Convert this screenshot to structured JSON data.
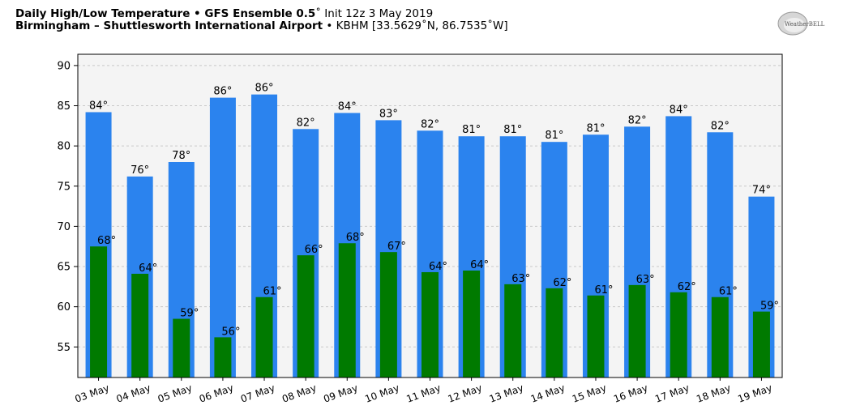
{
  "header": {
    "title_bold": "Daily High/Low Temperature • GFS Ensemble 0.5",
    "title_suffix": "˚ Init 12z 3 May 2019",
    "subtitle_bold": "Birmingham – Shuttlesworth International Airport",
    "subtitle_suffix": " • KBHM [33.5629˚N, 86.7535˚W]",
    "logo_text": "WeatherBELL"
  },
  "colors": {
    "high": "#2b83ee",
    "low": "#007a00",
    "plot_bg": "#f4f4f4"
  },
  "chart_data": {
    "type": "bar",
    "title": "Daily High/Low Temperature • GFS Ensemble 0.5˚ Init 12z 3 May 2019",
    "categories": [
      "03 May",
      "04 May",
      "05 May",
      "06 May",
      "07 May",
      "08 May",
      "09 May",
      "10 May",
      "11 May",
      "12 May",
      "13 May",
      "14 May",
      "15 May",
      "16 May",
      "17 May",
      "18 May",
      "19 May"
    ],
    "series": [
      {
        "name": "High",
        "values": [
          84.2,
          76.2,
          78.0,
          86.0,
          86.4,
          82.1,
          84.1,
          83.2,
          81.9,
          81.2,
          81.2,
          80.5,
          81.4,
          82.4,
          83.7,
          81.7,
          73.7
        ],
        "labels": [
          "84°",
          "76°",
          "78°",
          "86°",
          "86°",
          "82°",
          "84°",
          "83°",
          "82°",
          "81°",
          "81°",
          "81°",
          "81°",
          "82°",
          "84°",
          "82°",
          "74°"
        ]
      },
      {
        "name": "Low",
        "values": [
          67.5,
          64.1,
          58.5,
          56.2,
          61.2,
          66.4,
          67.9,
          66.8,
          64.3,
          64.5,
          62.8,
          62.3,
          61.4,
          62.7,
          61.8,
          61.2,
          59.4
        ],
        "labels": [
          "68°",
          "64°",
          "59°",
          "56°",
          "61°",
          "66°",
          "68°",
          "67°",
          "64°",
          "64°",
          "63°",
          "62°",
          "61°",
          "63°",
          "62°",
          "61°",
          "59°"
        ]
      }
    ],
    "yticks": [
      55,
      60,
      65,
      70,
      75,
      80,
      85,
      90
    ],
    "ylim": [
      51.2,
      91.4
    ],
    "grid": true,
    "xlabel": "",
    "ylabel": ""
  }
}
